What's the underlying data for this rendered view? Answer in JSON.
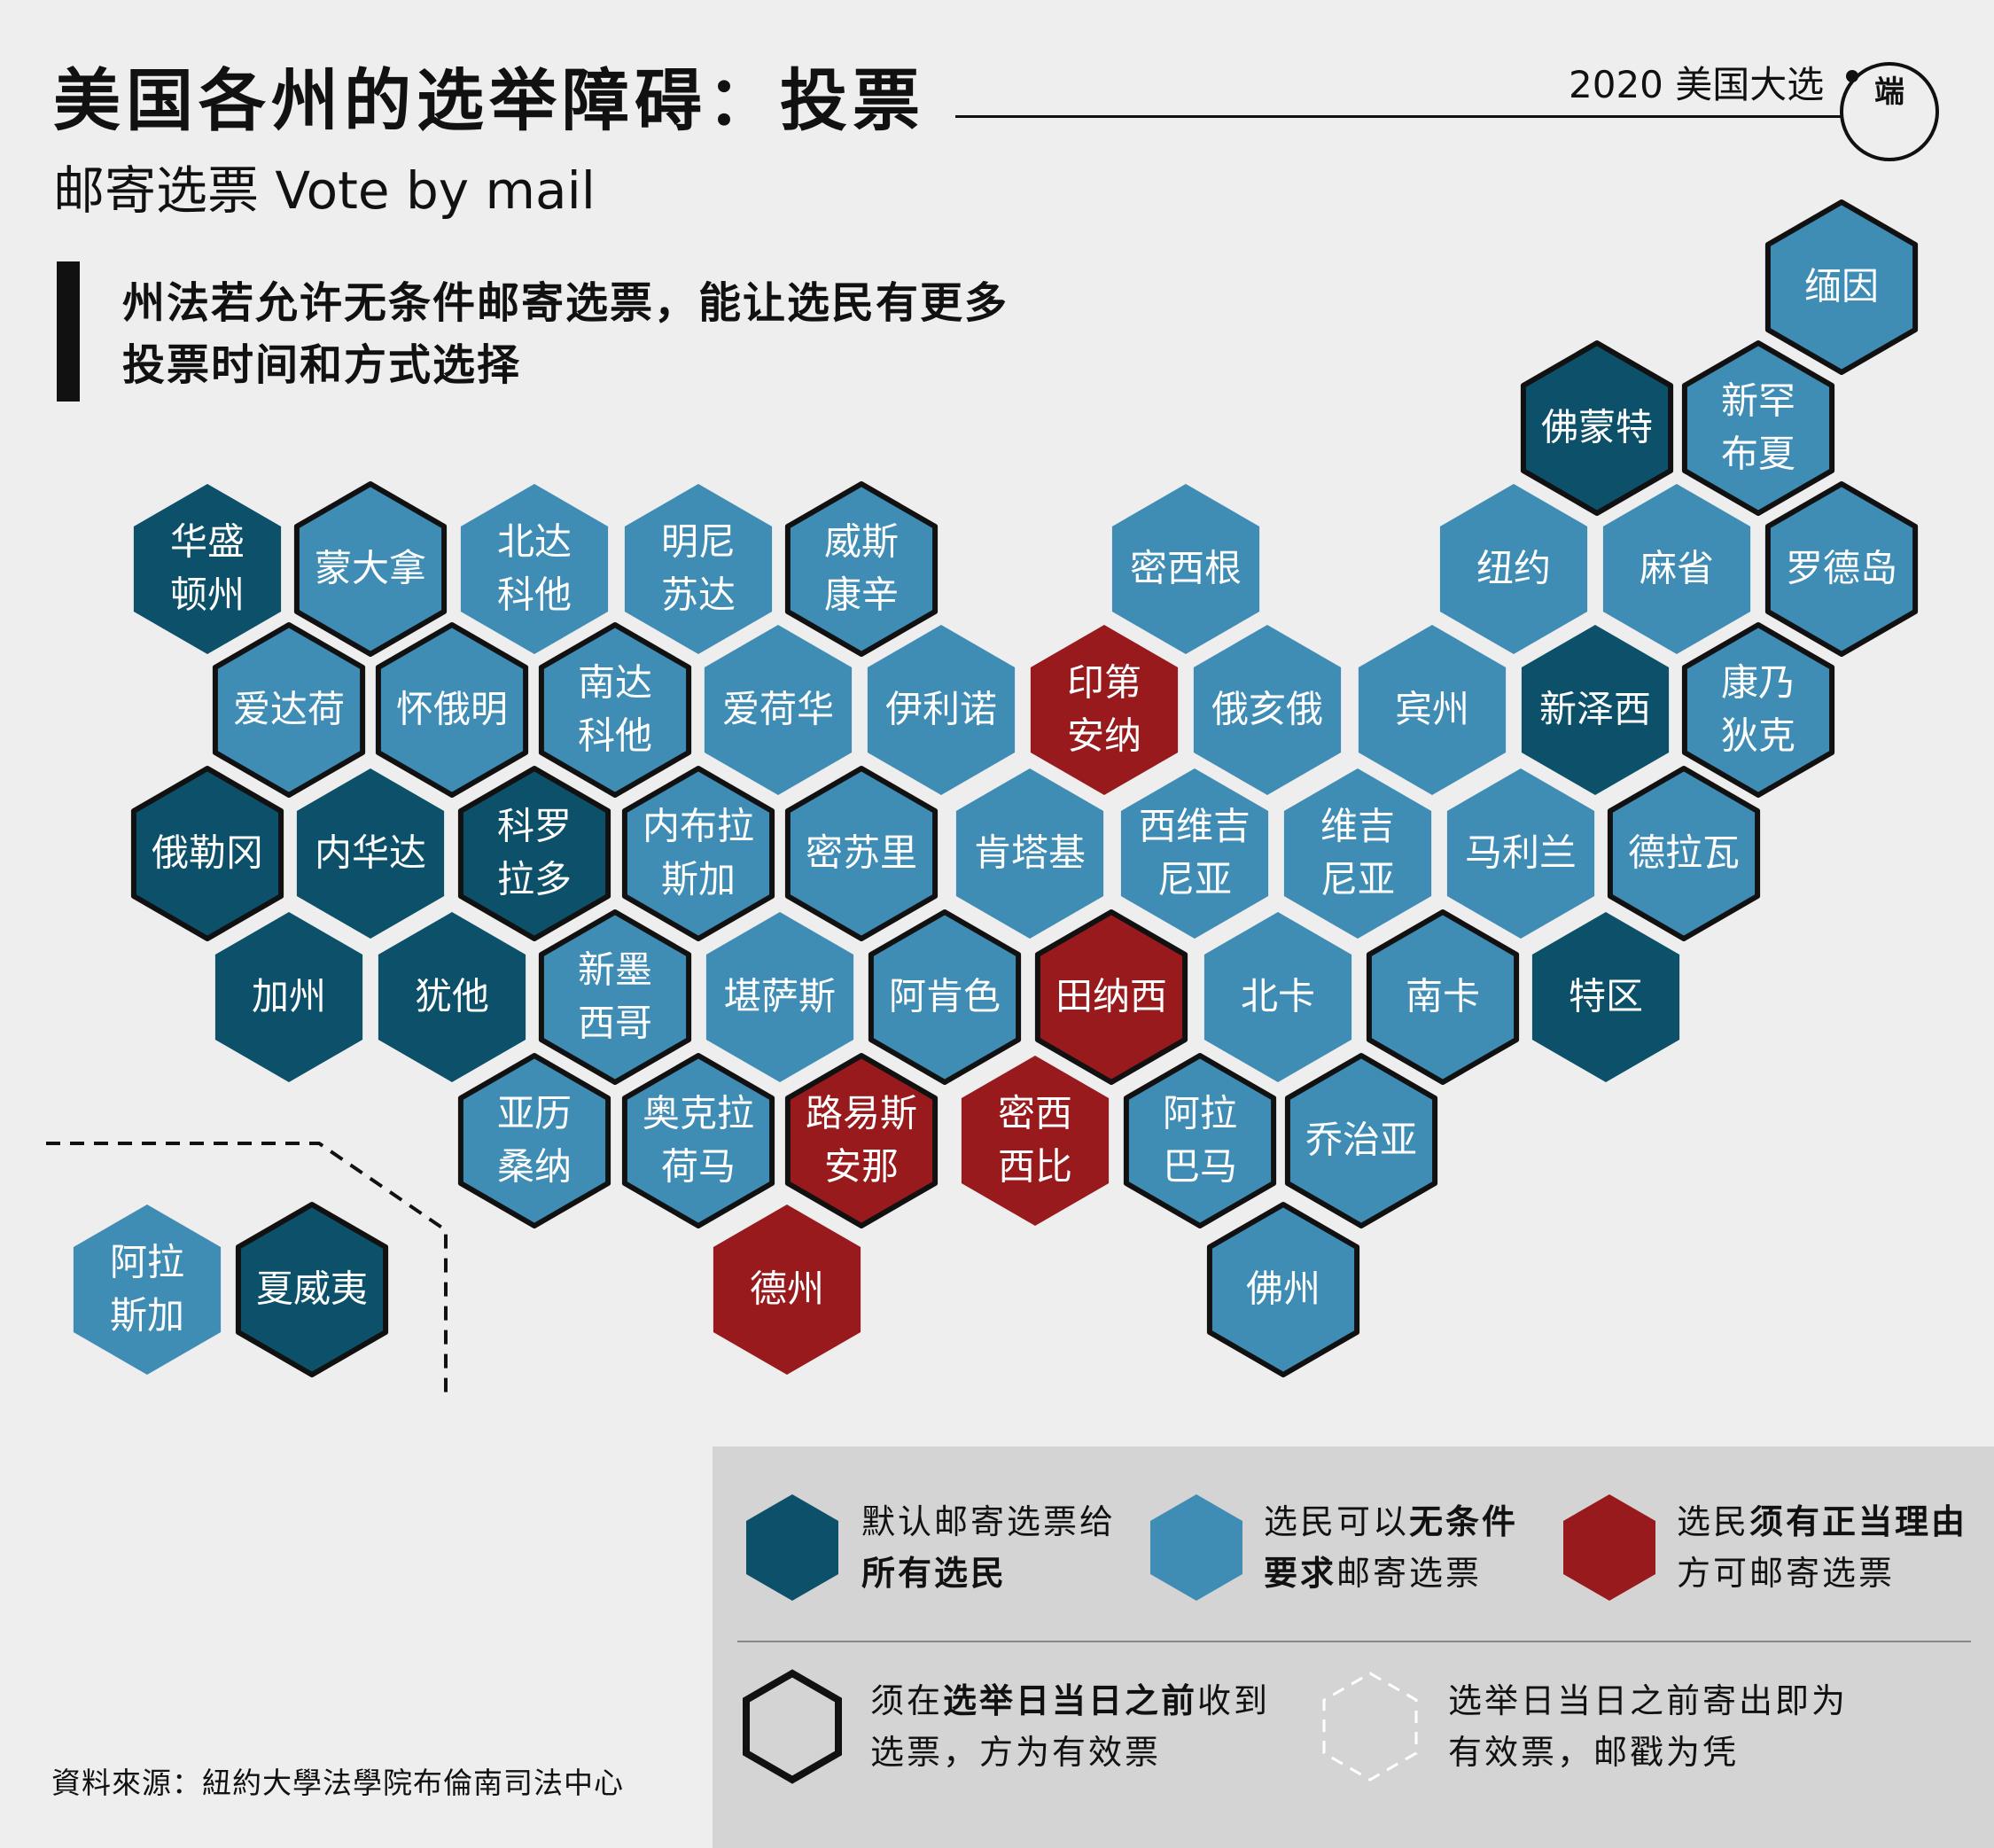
{
  "header": {
    "title": "美国各州的选举障碍：投票",
    "subtitle": "邮寄选票 Vote by mail",
    "tag": "2020 美国大选",
    "logo_text": "端"
  },
  "description": {
    "line1": "州法若允许无条件邮寄选票，能让选民有更多",
    "line2": "投票时间和方式选择"
  },
  "colors": {
    "default_all_voters": "#0d5069",
    "no_excuse_request": "#3f8cb5",
    "excuse_required": "#981a1d",
    "border": "#111111"
  },
  "states": [
    {
      "name": "缅因",
      "lines": [
        "缅因"
      ],
      "category": "request",
      "received_before": true
    },
    {
      "name": "佛蒙特",
      "lines": [
        "佛蒙特"
      ],
      "category": "default",
      "received_before": true
    },
    {
      "name": "新罕布夏",
      "lines": [
        "新罕",
        "布夏"
      ],
      "category": "request",
      "received_before": true
    },
    {
      "name": "华盛顿州",
      "lines": [
        "华盛",
        "顿州"
      ],
      "category": "default",
      "received_before": false
    },
    {
      "name": "蒙大拿",
      "lines": [
        "蒙大拿"
      ],
      "category": "request",
      "received_before": true
    },
    {
      "name": "北达科他",
      "lines": [
        "北达",
        "科他"
      ],
      "category": "request",
      "received_before": false
    },
    {
      "name": "明尼苏达",
      "lines": [
        "明尼",
        "苏达"
      ],
      "category": "request",
      "received_before": false
    },
    {
      "name": "威斯康辛",
      "lines": [
        "威斯",
        "康辛"
      ],
      "category": "request",
      "received_before": true
    },
    {
      "name": "密西根",
      "lines": [
        "密西根"
      ],
      "category": "request",
      "received_before": false
    },
    {
      "name": "纽约",
      "lines": [
        "纽约"
      ],
      "category": "request",
      "received_before": false
    },
    {
      "name": "麻省",
      "lines": [
        "麻省"
      ],
      "category": "request",
      "received_before": false
    },
    {
      "name": "罗德岛",
      "lines": [
        "罗德岛"
      ],
      "category": "request",
      "received_before": true
    },
    {
      "name": "爱达荷",
      "lines": [
        "爱达荷"
      ],
      "category": "request",
      "received_before": true
    },
    {
      "name": "怀俄明",
      "lines": [
        "怀俄明"
      ],
      "category": "request",
      "received_before": true
    },
    {
      "name": "南达科他",
      "lines": [
        "南达",
        "科他"
      ],
      "category": "request",
      "received_before": true
    },
    {
      "name": "爱荷华",
      "lines": [
        "爱荷华"
      ],
      "category": "request",
      "received_before": false
    },
    {
      "name": "伊利诺",
      "lines": [
        "伊利诺"
      ],
      "category": "request",
      "received_before": false
    },
    {
      "name": "印第安纳",
      "lines": [
        "印第",
        "安纳"
      ],
      "category": "excuse",
      "received_before": false
    },
    {
      "name": "俄亥俄",
      "lines": [
        "俄亥俄"
      ],
      "category": "request",
      "received_before": false
    },
    {
      "name": "宾州",
      "lines": [
        "宾州"
      ],
      "category": "request",
      "received_before": false
    },
    {
      "name": "新泽西",
      "lines": [
        "新泽西"
      ],
      "category": "default",
      "received_before": false
    },
    {
      "name": "康乃狄克",
      "lines": [
        "康乃",
        "狄克"
      ],
      "category": "request",
      "received_before": true
    },
    {
      "name": "俄勒冈",
      "lines": [
        "俄勒冈"
      ],
      "category": "default",
      "received_before": true
    },
    {
      "name": "内华达",
      "lines": [
        "内华达"
      ],
      "category": "default",
      "received_before": false
    },
    {
      "name": "科罗拉多",
      "lines": [
        "科罗",
        "拉多"
      ],
      "category": "default",
      "received_before": true
    },
    {
      "name": "内布拉斯加",
      "lines": [
        "内布拉",
        "斯加"
      ],
      "category": "request",
      "received_before": true
    },
    {
      "name": "密苏里",
      "lines": [
        "密苏里"
      ],
      "category": "request",
      "received_before": true
    },
    {
      "name": "肯塔基",
      "lines": [
        "肯塔基"
      ],
      "category": "request",
      "received_before": false
    },
    {
      "name": "西维吉尼亚",
      "lines": [
        "西维吉",
        "尼亚"
      ],
      "category": "request",
      "received_before": false
    },
    {
      "name": "维吉尼亚",
      "lines": [
        "维吉",
        "尼亚"
      ],
      "category": "request",
      "received_before": false
    },
    {
      "name": "马利兰",
      "lines": [
        "马利兰"
      ],
      "category": "request",
      "received_before": false
    },
    {
      "name": "德拉瓦",
      "lines": [
        "德拉瓦"
      ],
      "category": "request",
      "received_before": true
    },
    {
      "name": "加州",
      "lines": [
        "加州"
      ],
      "category": "default",
      "received_before": false
    },
    {
      "name": "犹他",
      "lines": [
        "犹他"
      ],
      "category": "default",
      "received_before": false
    },
    {
      "name": "新墨西哥",
      "lines": [
        "新墨",
        "西哥"
      ],
      "category": "request",
      "received_before": true
    },
    {
      "name": "堪萨斯",
      "lines": [
        "堪萨斯"
      ],
      "category": "request",
      "received_before": false
    },
    {
      "name": "阿肯色",
      "lines": [
        "阿肯色"
      ],
      "category": "request",
      "received_before": true
    },
    {
      "name": "田纳西",
      "lines": [
        "田纳西"
      ],
      "category": "excuse",
      "received_before": true
    },
    {
      "name": "北卡",
      "lines": [
        "北卡"
      ],
      "category": "request",
      "received_before": false
    },
    {
      "name": "南卡",
      "lines": [
        "南卡"
      ],
      "category": "request",
      "received_before": true
    },
    {
      "name": "特区",
      "lines": [
        "特区"
      ],
      "category": "default",
      "received_before": false
    },
    {
      "name": "亚历桑纳",
      "lines": [
        "亚历",
        "桑纳"
      ],
      "category": "request",
      "received_before": true
    },
    {
      "name": "奥克拉荷马",
      "lines": [
        "奥克拉",
        "荷马"
      ],
      "category": "request",
      "received_before": true
    },
    {
      "name": "路易斯安那",
      "lines": [
        "路易斯",
        "安那"
      ],
      "category": "excuse",
      "received_before": true
    },
    {
      "name": "密西西比",
      "lines": [
        "密西",
        "西比"
      ],
      "category": "excuse",
      "received_before": false
    },
    {
      "name": "阿拉巴马",
      "lines": [
        "阿拉",
        "巴马"
      ],
      "category": "request",
      "received_before": true
    },
    {
      "name": "乔治亚",
      "lines": [
        "乔治亚"
      ],
      "category": "request",
      "received_before": true
    },
    {
      "name": "德州",
      "lines": [
        "德州"
      ],
      "category": "excuse",
      "received_before": false
    },
    {
      "name": "佛州",
      "lines": [
        "佛州"
      ],
      "category": "request",
      "received_before": true
    },
    {
      "name": "阿拉斯加",
      "lines": [
        "阿拉",
        "斯加"
      ],
      "category": "request",
      "received_before": false
    },
    {
      "name": "夏威夷",
      "lines": [
        "夏威夷"
      ],
      "category": "default",
      "received_before": true
    }
  ],
  "legend": {
    "default_line1": "默认邮寄选票给",
    "default_line2": "所有选民",
    "request_pre": "选民可以",
    "request_bold": "无条件",
    "request_line2_bold": "要求",
    "request_line2_rest": "邮寄选票",
    "excuse_pre": "选民",
    "excuse_bold": "须有正当理由",
    "excuse_line2": "方可邮寄选票",
    "received_pre": "须在",
    "received_bold": "选举日当日之前",
    "received_post": "收到",
    "received_line2": "选票，方为有效票",
    "postmark_line1": "选举日当日之前寄出即为",
    "postmark_line2": "有效票，邮戳为凭"
  },
  "source": "資料來源：紐約大學法學院布倫南司法中心"
}
